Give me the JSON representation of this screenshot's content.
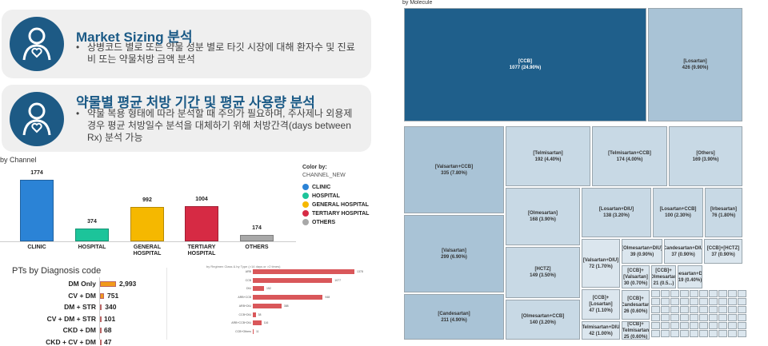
{
  "cards": [
    {
      "title": "Market Sizing 분석",
      "bullet": "상병코드 별로 또는 약물 성분 별로 타깃 시장에 대해 환자수 및 진료비 또는 약물처방 금액 분석",
      "icon": "patient-heart-icon"
    },
    {
      "title": "약물별 평균 처방 기간 및 평균 사용량 분석",
      "bullet": "약물 복용 형태에 따라 분석할 때 주의가 필요하며, 주사제나 외용제 경우 평균 처방일수 분석을 대체하기 위해 처방간격(days between Rx) 분석 가능",
      "icon": "patient-heart-icon"
    }
  ],
  "chart_data": [
    {
      "type": "bar",
      "title": "by Channel",
      "categories": [
        "CLINIC",
        "HOSPITAL",
        "GENERAL HOSPITAL",
        "TERTIARY HOSPITAL",
        "OTHERS"
      ],
      "values": [
        1774,
        374,
        992,
        1004,
        174
      ],
      "colors": [
        "#2b83d6",
        "#1cc49a",
        "#f5b800",
        "#d62a44",
        "#a8a8a8"
      ],
      "legend": {
        "title": "Color by:",
        "field": "CHANNEL_NEW",
        "items": [
          "CLINIC",
          "HOSPITAL",
          "GENERAL HOSPITAL",
          "TERTIARY HOSPITAL",
          "OTHERS"
        ],
        "placement": "right"
      }
    },
    {
      "type": "bar",
      "orientation": "horizontal",
      "title": "PTs by Diagnosis code",
      "categories": [
        "DM Only",
        "CV + DM",
        "DM + STR",
        "CV + DM + STR",
        "CKD + DM",
        "CKD + CV + DM"
      ],
      "values": [
        2993,
        751,
        340,
        101,
        68,
        47
      ],
      "value_labels": [
        "2,993",
        "751",
        "340",
        "101",
        "68",
        "47"
      ],
      "color": "#f29a1c"
    },
    {
      "type": "bar",
      "orientation": "horizontal",
      "title": "by Regimen Class & by Type (>14 days or >2 times)",
      "groups": [
        "1",
        "1",
        "1",
        "2",
        "2",
        "2",
        "3",
        "3"
      ],
      "categories": [
        "ARB",
        "CCB",
        "DIU",
        "ARB+CCB",
        "ARB+DIU",
        "CCB+DIU",
        "ARB+CCB+DIU",
        "CCB+Others"
      ],
      "values": [
        1378,
        1077,
        152,
        948,
        388,
        38,
        116,
        11
      ],
      "color": "#d9575a"
    },
    {
      "type": "treemap",
      "title": "by Molecule",
      "items": [
        {
          "label": "[CCB]",
          "value": 1077,
          "pct": "24.90%"
        },
        {
          "label": "[Losartan]",
          "value": 426,
          "pct": "9.90%"
        },
        {
          "label": "[Valsartan+CCB]",
          "value": 335,
          "pct": "7.80%"
        },
        {
          "label": "[Valsartan]",
          "value": 299,
          "pct": "6.90%"
        },
        {
          "label": "[Candesartan]",
          "value": 211,
          "pct": "4.90%"
        },
        {
          "label": "[Telmisartan]",
          "value": 192,
          "pct": "4.40%"
        },
        {
          "label": "[Telmisartan+CCB]",
          "value": 174,
          "pct": "4.00%"
        },
        {
          "label": "[Others]",
          "value": 169,
          "pct": "3.90%"
        },
        {
          "label": "[Olmesartan]",
          "value": 168,
          "pct": "3.90%"
        },
        {
          "label": "[Losartan+DIU]",
          "value": 138,
          "pct": "3.20%"
        },
        {
          "label": "[Losartan+CCB]",
          "value": 100,
          "pct": "2.30%"
        },
        {
          "label": "[Irbesartan]",
          "value": 76,
          "pct": "1.80%"
        },
        {
          "label": "[HCTZ]",
          "value": 149,
          "pct": "3.50%"
        },
        {
          "label": "[Olmesartan+CCB]",
          "value": 140,
          "pct": "3.20%"
        },
        {
          "label": "[Valsartan+DIU]",
          "value": 72,
          "pct": "1.70%"
        },
        {
          "label": "[CCB]+[Losartan]",
          "value": 47,
          "pct": "1.10%"
        },
        {
          "label": "[Telmisartan+DIU]",
          "value": 42,
          "pct": "1.00%"
        },
        {
          "label": "[Olmesartan+DIU]",
          "value": 39,
          "pct": "0.90%"
        },
        {
          "label": "[Candesartan+DIU]",
          "value": 37,
          "pct": "0.90%"
        },
        {
          "label": "[CCB]+[HCTZ]",
          "value": 37,
          "pct": "0.90%"
        },
        {
          "label": "[CCB]+[Valsartan]",
          "value": 30,
          "pct": "0.70%"
        },
        {
          "label": "[CCB]+[Olmesartan]",
          "value": 21,
          "pct": "0.5..."
        },
        {
          "label": "[Irbesartan+DIU]",
          "value": 19,
          "pct": "0.40%"
        },
        {
          "label": "[CCB]+[Candesartan]",
          "value": 26,
          "pct": "0.60%"
        },
        {
          "label": "[CCB]+[Telmisartan]",
          "value": 25,
          "pct": "0.60%"
        }
      ]
    }
  ]
}
